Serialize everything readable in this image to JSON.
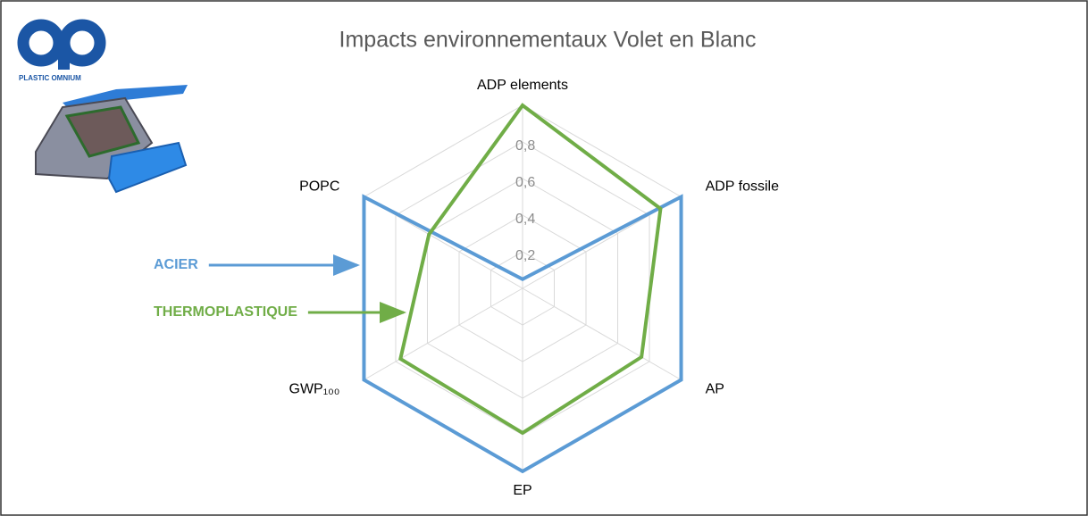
{
  "brand": "PLASTIC OMNIUM",
  "chart_data": {
    "type": "radar",
    "title": "Impacts environnementaux Volet en Blanc",
    "categories": [
      "ADP elements",
      "ADP fossile",
      "AP",
      "EP",
      "GWP₁₀₀",
      "POPC"
    ],
    "series": [
      {
        "name": "ACIER",
        "color": "#5b9bd5",
        "values": [
          0.05,
          1,
          1,
          1,
          1,
          1
        ]
      },
      {
        "name": "THERMOPLASTIQUE",
        "color": "#70ad47",
        "values": [
          1,
          0.87,
          0.75,
          0.79,
          0.77,
          0.59
        ]
      }
    ],
    "ylim": [
      0,
      1
    ],
    "yticks": [
      {
        "value": 0.2,
        "label": "0,2"
      },
      {
        "value": 0.4,
        "label": "0,4"
      },
      {
        "value": 0.6,
        "label": "0,6"
      },
      {
        "value": 0.8,
        "label": "0,8"
      }
    ],
    "grid": true
  }
}
